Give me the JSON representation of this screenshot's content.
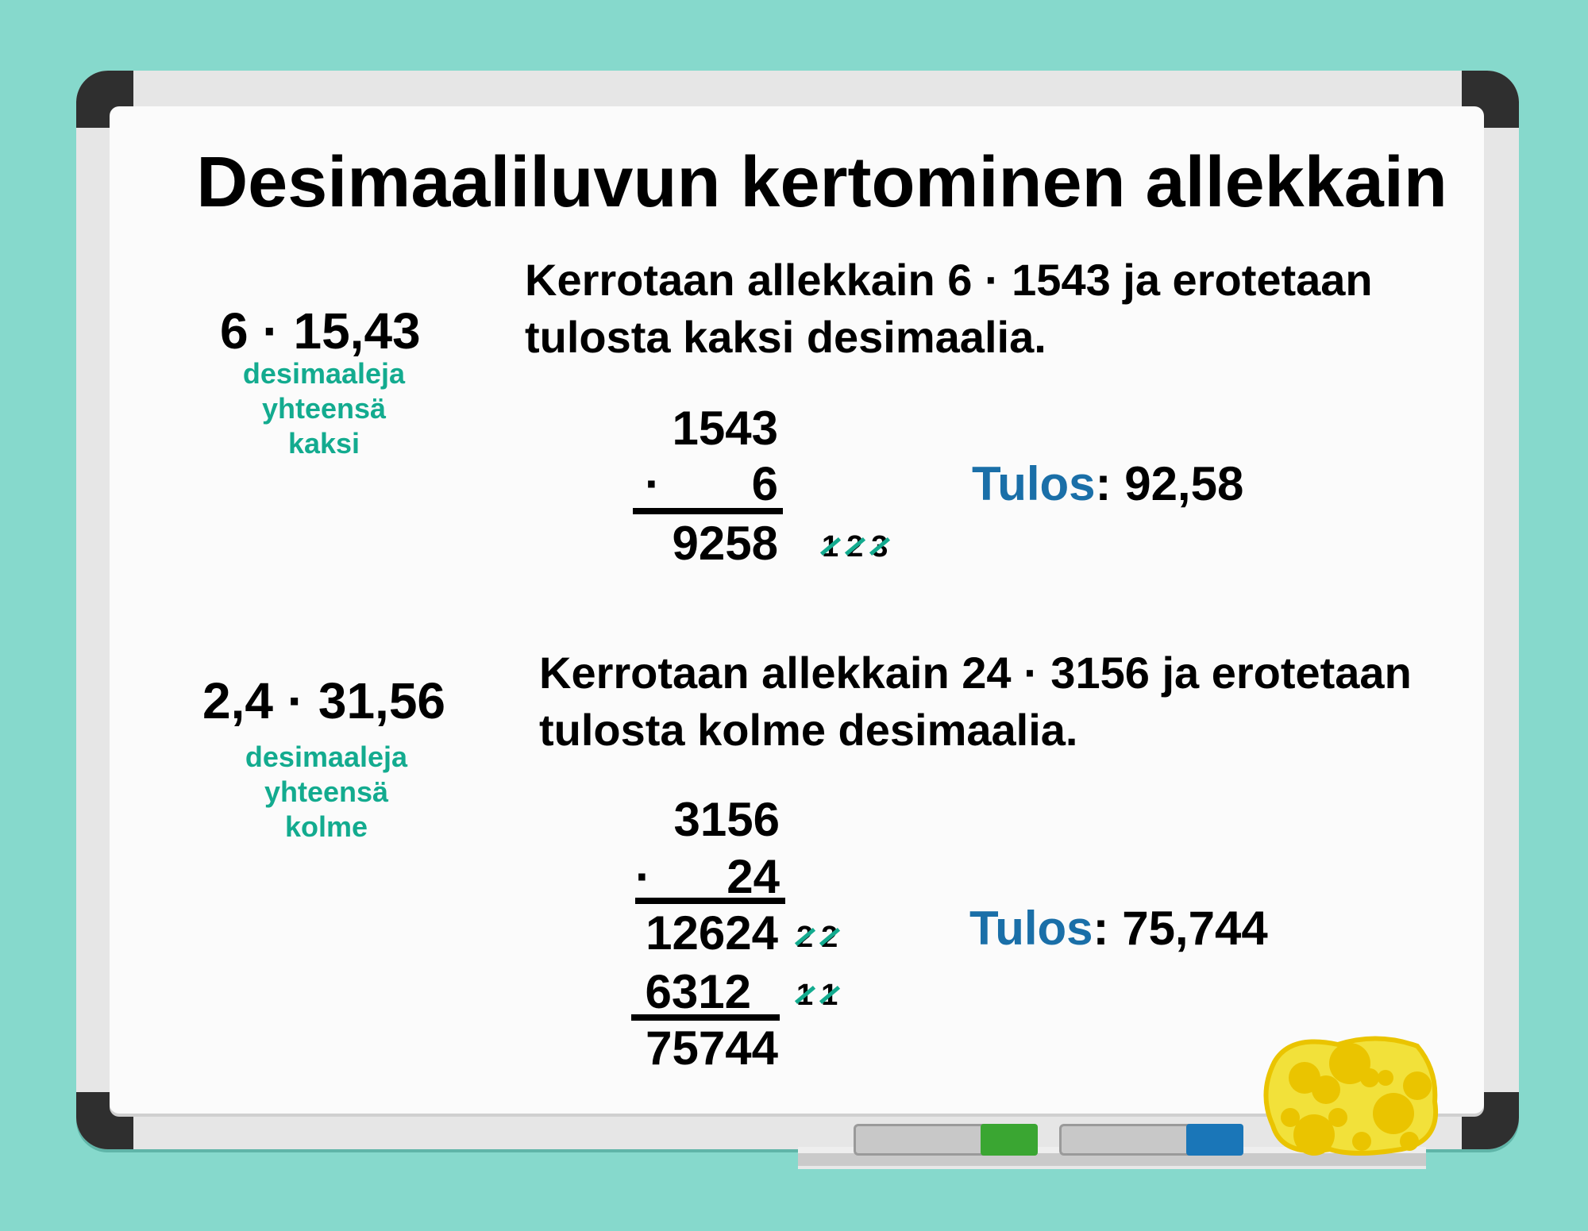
{
  "title": "Desimaaliluvun kertominen allekkain",
  "colors": {
    "background": "#86d9cc",
    "green_text": "#13ab8f",
    "tulos_label": "#1a6fa8",
    "marker_green": "#3aa632",
    "marker_blue": "#1a76b8",
    "sponge": "#f2e13a"
  },
  "examples": [
    {
      "expression": "6 · 15,43",
      "note": [
        "desimaaleja",
        "yhteensä",
        "kaksi"
      ],
      "explanation": [
        "Kerrotaan allekkain 6 · 1543 ja erotetaan",
        "tulosta kaksi desimaalia."
      ],
      "multiplicand": "1543",
      "operator": "·",
      "multiplier": "6",
      "partials": [
        "9258"
      ],
      "carries": [
        [
          "1",
          "2",
          "3"
        ]
      ],
      "result_label": "Tulos",
      "result_value": ": 92,58"
    },
    {
      "expression": "2,4 · 31,56",
      "note": [
        "desimaaleja",
        "yhteensä",
        "kolme"
      ],
      "explanation": [
        "Kerrotaan allekkain 24 · 3156 ja erotetaan",
        "tulosta kolme desimaalia."
      ],
      "multiplicand": "3156",
      "operator": "·",
      "multiplier": "24",
      "partials": [
        "12624",
        "6312"
      ],
      "carries": [
        [
          "2",
          "2"
        ],
        [
          "1",
          "1"
        ]
      ],
      "total": "75744",
      "result_label": "Tulos",
      "result_value": ": 75,744"
    }
  ],
  "icons": [
    "marker-green-icon",
    "marker-blue-icon",
    "sponge-icon"
  ]
}
